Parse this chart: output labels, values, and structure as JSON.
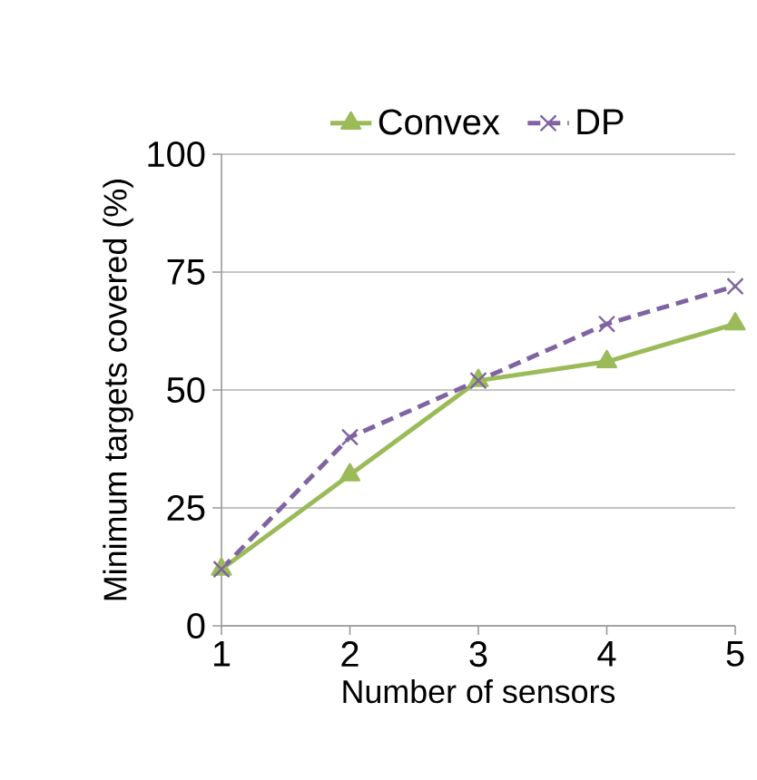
{
  "chart_data": {
    "type": "line",
    "xlabel": "Number of sensors",
    "ylabel": "Minimum targets covered (%)",
    "x": [
      1,
      2,
      3,
      4,
      5
    ],
    "xlim": [
      1,
      5
    ],
    "xticks": [
      1,
      2,
      3,
      4,
      5
    ],
    "ylim": [
      0,
      100
    ],
    "yticks": [
      0,
      25,
      50,
      75,
      100
    ],
    "grid": "y",
    "legend": "top",
    "series": [
      {
        "name": "Convex",
        "color": "#9bbb59",
        "values": [
          12,
          32,
          52,
          56,
          64
        ],
        "marker": "triangle",
        "line_style": "solid"
      },
      {
        "name": "DP",
        "color": "#8064a2",
        "values": [
          12,
          40,
          52,
          64,
          72
        ],
        "marker": "cross",
        "line_style": "dashed"
      }
    ]
  }
}
